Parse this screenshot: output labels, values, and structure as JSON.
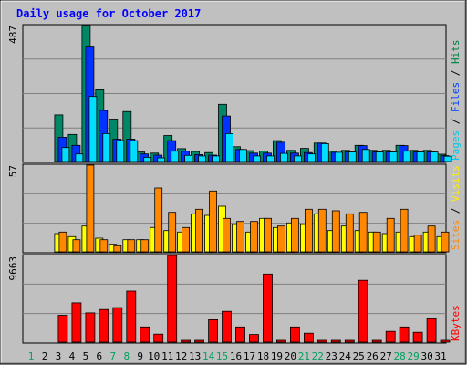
{
  "chart_data": [
    {
      "type": "bar",
      "title": "Daily usage for October 2017",
      "panel": "hits-files-pages",
      "ymax_label": "487",
      "ylim": [
        0,
        487
      ],
      "right_labels": [
        {
          "text": "Pages",
          "color": "#00c8e8"
        },
        {
          "text": " / ",
          "color": "#000000"
        },
        {
          "text": "Files",
          "color": "#0040ff"
        },
        {
          "text": " / ",
          "color": "#000000"
        },
        {
          "text": "Hits",
          "color": "#008040"
        }
      ],
      "series": [
        {
          "name": "Hits",
          "color": "#008866",
          "values": [
            0,
            0,
            167,
            97,
            487,
            257,
            152,
            179,
            34,
            30,
            93,
            46,
            36,
            32,
            205,
            53,
            39,
            38,
            75,
            40,
            47,
            66,
            38,
            40,
            58,
            40,
            40,
            58,
            40,
            40,
            26
          ]
        },
        {
          "name": "Files",
          "color": "#0033ff",
          "values": [
            0,
            0,
            87,
            58,
            413,
            183,
            80,
            80,
            27,
            23,
            75,
            37,
            25,
            23,
            163,
            43,
            30,
            30,
            69,
            30,
            32,
            66,
            33,
            34,
            57,
            34,
            34,
            57,
            34,
            34,
            21
          ]
        },
        {
          "name": "Pages",
          "color": "#00ddff",
          "values": [
            0,
            0,
            50,
            27,
            233,
            100,
            75,
            75,
            15,
            13,
            37,
            22,
            20,
            20,
            100,
            43,
            20,
            20,
            29,
            20,
            27,
            64,
            33,
            34,
            43,
            34,
            34,
            37,
            34,
            34,
            19
          ]
        }
      ]
    },
    {
      "type": "bar",
      "panel": "visits-sites",
      "ymax_label": "57",
      "ylim": [
        0,
        57
      ],
      "right_labels": [
        {
          "text": "Sites",
          "color": "#ff8800"
        },
        {
          "text": " / ",
          "color": "#000000"
        },
        {
          "text": "Visits",
          "color": "#ffee00"
        }
      ],
      "series": [
        {
          "name": "Visits",
          "color": "#ffff00",
          "values": [
            0,
            0,
            12,
            10,
            17,
            9,
            5,
            8,
            8,
            16,
            14,
            13,
            25,
            24,
            30,
            18,
            13,
            22,
            16,
            19,
            18,
            25,
            14,
            17,
            14,
            13,
            12,
            13,
            10,
            13,
            10
          ]
        },
        {
          "name": "Sites",
          "color": "#ff8800",
          "values": [
            0,
            0,
            13,
            8,
            57,
            8,
            4,
            8,
            8,
            42,
            26,
            16,
            28,
            40,
            22,
            20,
            20,
            22,
            17,
            22,
            28,
            28,
            27,
            25,
            26,
            13,
            22,
            28,
            11,
            17,
            13
          ]
        }
      ]
    },
    {
      "type": "bar",
      "panel": "kbytes",
      "ymax_label": "9663",
      "ylim": [
        0,
        9663
      ],
      "right_labels": [
        {
          "text": "KBytes",
          "color": "#ff0000"
        }
      ],
      "series": [
        {
          "name": "KBytes",
          "color": "#ff0000",
          "values": [
            0,
            0,
            3000,
            4380,
            3260,
            3640,
            3850,
            5700,
            1700,
            900,
            9663,
            100,
            100,
            2500,
            3440,
            1700,
            850,
            7600,
            100,
            1700,
            1000,
            200,
            100,
            100,
            6900,
            100,
            1200,
            1700,
            1100,
            2600,
            100
          ]
        }
      ]
    }
  ],
  "x_axis": {
    "labels": [
      "1",
      "2",
      "3",
      "4",
      "5",
      "6",
      "7",
      "8",
      "9",
      "10",
      "11",
      "12",
      "13",
      "14",
      "15",
      "16",
      "17",
      "18",
      "19",
      "20",
      "21",
      "22",
      "23",
      "24",
      "25",
      "26",
      "27",
      "28",
      "29",
      "30",
      "31"
    ],
    "weekend_days": [
      1,
      7,
      8,
      14,
      15,
      21,
      22,
      28,
      29
    ],
    "weekend_color": "#00a060",
    "weekday_color": "#000000"
  },
  "colors": {
    "background": "#c0c0c0",
    "title": "#0000ff",
    "frame": "#000000"
  }
}
